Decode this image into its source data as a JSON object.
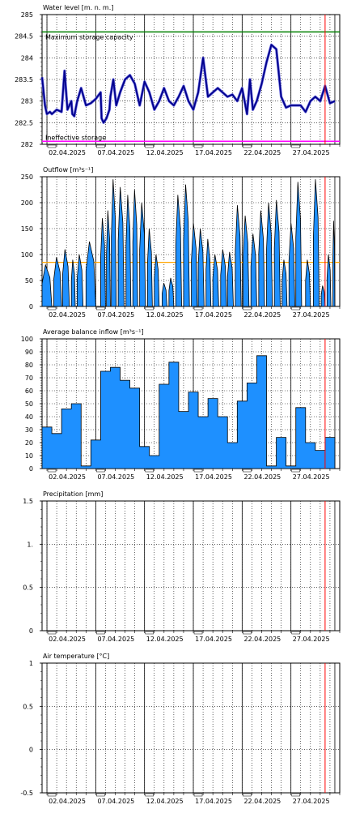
{
  "date_labels": [
    "02.04.2025",
    "07.04.2025",
    "12.04.2025",
    "17.04.2025",
    "22.04.2025",
    "27.04.2025"
  ],
  "colors": {
    "grid_major": "#000000",
    "grid_minor": "#000000",
    "current_time": "#ff0000",
    "water_line": "#00008b",
    "water_highlight": "#6666dd",
    "max_storage": "#008000",
    "ineffective": "#ff00ff",
    "bar_fill": "#1e90ff",
    "bar_stroke": "#000000",
    "outflow_ref": "#ffa500"
  },
  "chart_data": [
    {
      "id": "water_level",
      "type": "line",
      "title": "Water level [m. n. m.]",
      "ylim": [
        282,
        285
      ],
      "yticks": [
        282,
        282.5,
        283,
        283.5,
        284,
        284.5,
        285
      ],
      "ytick_labels": [
        "282",
        "282.5",
        "283",
        "283.5",
        "284",
        "284.5",
        "285"
      ],
      "reference_lines": [
        {
          "label": "Maximum storage capacity",
          "value": 284.6
        },
        {
          "label": "Ineffective storage",
          "value": 282.07
        }
      ],
      "x": [
        0,
        0.3,
        0.5,
        0.8,
        1.0,
        1.5,
        2.0,
        2.3,
        2.6,
        3.0,
        3.1,
        3.3,
        3.6,
        4.0,
        4.5,
        5.0,
        5.5,
        6.0,
        6.1,
        6.3,
        6.6,
        6.9,
        7.0,
        7.3,
        7.6,
        8.0,
        8.5,
        9.0,
        9.5,
        10.0,
        10.5,
        11.0,
        11.5,
        12.0,
        12.5,
        13.0,
        13.5,
        14.0,
        14.5,
        15.0,
        15.5,
        16.0,
        16.5,
        17.0,
        17.5,
        18.0,
        18.5,
        19.0,
        19.5,
        20.0,
        20.5,
        21.0,
        21.3,
        21.6,
        22.0,
        22.5,
        23.0,
        23.5,
        24.0,
        24.5,
        25.0,
        25.5,
        26.0,
        26.5,
        27.0,
        27.5,
        28.0,
        28.5,
        29.0,
        29.5,
        30.0
      ],
      "y": [
        283.55,
        282.9,
        282.7,
        282.75,
        282.7,
        282.8,
        282.75,
        283.7,
        282.8,
        283.0,
        282.7,
        282.65,
        283.0,
        283.3,
        282.9,
        282.95,
        283.05,
        283.2,
        282.6,
        282.5,
        282.6,
        282.8,
        283.1,
        283.5,
        282.9,
        283.2,
        283.5,
        283.6,
        283.4,
        282.9,
        283.45,
        283.2,
        282.8,
        283.0,
        283.3,
        283.0,
        282.9,
        283.1,
        283.35,
        283.0,
        282.8,
        283.2,
        284.0,
        283.1,
        283.2,
        283.3,
        283.2,
        283.1,
        283.15,
        283.0,
        283.3,
        282.7,
        283.5,
        282.8,
        283.0,
        283.4,
        283.9,
        284.3,
        284.2,
        283.1,
        282.85,
        282.9,
        282.9,
        282.9,
        282.75,
        283.0,
        283.1,
        283.0,
        283.35,
        282.95,
        283.0
      ]
    },
    {
      "id": "outflow",
      "type": "area",
      "title": "Outflow [m³s⁻¹]",
      "ylim": [
        0,
        250
      ],
      "yticks": [
        0,
        50,
        100,
        150,
        200,
        250
      ],
      "ytick_labels": [
        "0",
        "50",
        "100",
        "150",
        "200",
        "250"
      ],
      "reference_lines": [
        {
          "label": "",
          "value": 85
        }
      ],
      "pulses": [
        [
          0.0,
          1.0,
          80
        ],
        [
          1.2,
          2.0,
          95
        ],
        [
          2.1,
          2.8,
          110
        ],
        [
          3.0,
          3.4,
          90
        ],
        [
          3.6,
          4.2,
          100
        ],
        [
          4.5,
          5.5,
          125
        ],
        [
          6.0,
          6.5,
          170
        ],
        [
          6.6,
          7.0,
          185
        ],
        [
          7.1,
          7.6,
          245
        ],
        [
          7.8,
          8.4,
          230
        ],
        [
          8.6,
          9.1,
          215
        ],
        [
          9.3,
          9.8,
          225
        ],
        [
          10.0,
          10.6,
          200
        ],
        [
          10.8,
          11.3,
          150
        ],
        [
          11.5,
          12.0,
          100
        ],
        [
          12.3,
          12.8,
          45
        ],
        [
          13.0,
          13.5,
          55
        ],
        [
          13.7,
          14.3,
          215
        ],
        [
          14.5,
          15.1,
          235
        ],
        [
          15.3,
          15.9,
          160
        ],
        [
          16.0,
          16.6,
          150
        ],
        [
          16.8,
          17.3,
          130
        ],
        [
          17.5,
          18.1,
          100
        ],
        [
          18.3,
          18.9,
          110
        ],
        [
          19.0,
          19.6,
          105
        ],
        [
          19.8,
          20.4,
          195
        ],
        [
          20.6,
          21.2,
          175
        ],
        [
          21.4,
          22.0,
          140
        ],
        [
          22.2,
          22.8,
          185
        ],
        [
          23.0,
          23.6,
          200
        ],
        [
          23.8,
          24.4,
          205
        ],
        [
          24.6,
          25.1,
          90
        ],
        [
          25.3,
          25.9,
          160
        ],
        [
          26.0,
          26.6,
          240
        ],
        [
          27.0,
          27.5,
          90
        ],
        [
          27.8,
          28.4,
          245
        ],
        [
          28.6,
          29.0,
          40
        ],
        [
          29.2,
          29.6,
          100
        ],
        [
          29.8,
          30.0,
          165
        ]
      ]
    },
    {
      "id": "avg_balance_inflow",
      "type": "bar",
      "title": "Average balance inflow  [m³s⁻¹]",
      "ylim": [
        0,
        100
      ],
      "yticks": [
        0,
        10,
        20,
        30,
        40,
        50,
        60,
        70,
        80,
        90,
        100
      ],
      "ytick_labels": [
        "0",
        "10",
        "20",
        "30",
        "40",
        "50",
        "60",
        "70",
        "80",
        "90",
        "100"
      ],
      "x_start": [
        0,
        1,
        2,
        3,
        4,
        5,
        6,
        7,
        8,
        9,
        10,
        11,
        12,
        13,
        14,
        15,
        16,
        17,
        18,
        19,
        20,
        21,
        22,
        23,
        24,
        25,
        26,
        27,
        28,
        29
      ],
      "values": [
        32,
        27,
        46,
        50,
        2,
        22,
        75,
        78,
        68,
        62,
        17,
        10,
        65,
        82,
        44,
        59,
        40,
        54,
        40,
        20,
        52,
        66,
        87,
        2,
        24,
        2,
        47,
        20,
        14,
        24
      ]
    },
    {
      "id": "precipitation",
      "type": "bar",
      "title": "Precipitation [mm]",
      "ylim": [
        0,
        1.5
      ],
      "yticks": [
        0,
        0.5,
        1,
        1.5
      ],
      "ytick_labels": [
        "0",
        "0.5",
        "1.",
        "1.5"
      ],
      "values": []
    },
    {
      "id": "air_temperature",
      "type": "line",
      "title": "Air temperature [°C]",
      "ylim": [
        -0.5,
        1
      ],
      "yticks": [
        -0.5,
        0,
        0.5,
        1
      ],
      "ytick_labels": [
        "-0.5",
        "0",
        "0.5",
        "1"
      ],
      "values": []
    }
  ]
}
